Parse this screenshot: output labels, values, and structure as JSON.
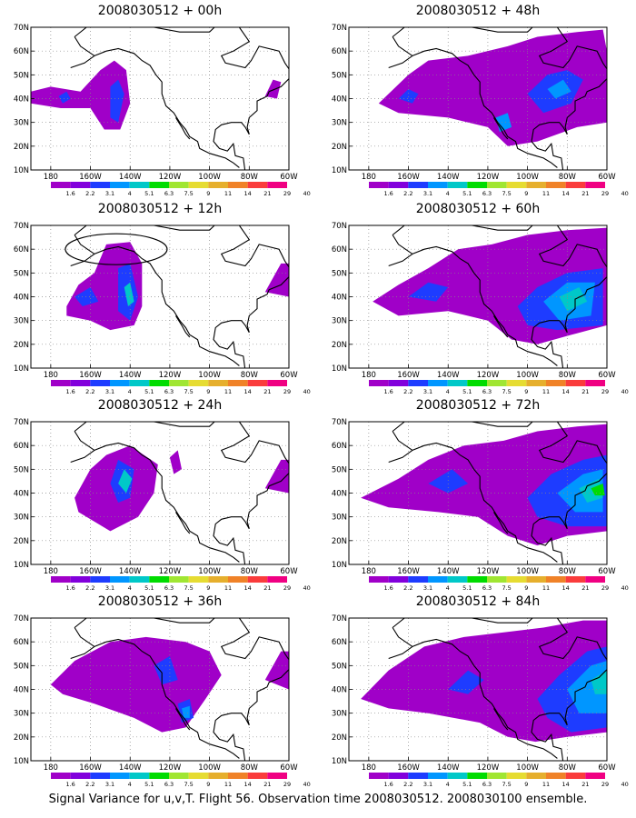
{
  "footer": "Signal Variance for u,v,T. Flight 56. Observation time 2008030512. 2008030100 ensemble.",
  "axes": {
    "lat_ticks": [
      "70N",
      "60N",
      "50N",
      "40N",
      "30N",
      "20N",
      "10N"
    ],
    "lon_ticks": [
      "180",
      "160W",
      "140W",
      "120W",
      "100W",
      "80W",
      "60W"
    ],
    "lat_range": [
      10,
      70
    ],
    "lon_range": [
      -190,
      -60
    ]
  },
  "colorbar": {
    "labels": [
      "1.6",
      "2.2",
      "3.1",
      "4",
      "5.1",
      "6.3",
      "7.5",
      "9",
      "11",
      "14",
      "21",
      "29",
      "40"
    ],
    "colors": [
      "#a000c8",
      "#8200dc",
      "#1e3cff",
      "#0096ff",
      "#00c8c8",
      "#00dc00",
      "#a0e632",
      "#e6dc32",
      "#e6af2d",
      "#f08228",
      "#fa3c3c",
      "#f00082"
    ]
  },
  "panels": [
    {
      "title": "2008030512 + 00h"
    },
    {
      "title": "2008030512 + 48h"
    },
    {
      "title": "2008030512 + 12h"
    },
    {
      "title": "2008030512 + 60h"
    },
    {
      "title": "2008030512 + 24h"
    },
    {
      "title": "2008030512 + 72h"
    },
    {
      "title": "2008030512 + 36h"
    },
    {
      "title": "2008030512 + 84h"
    }
  ]
}
